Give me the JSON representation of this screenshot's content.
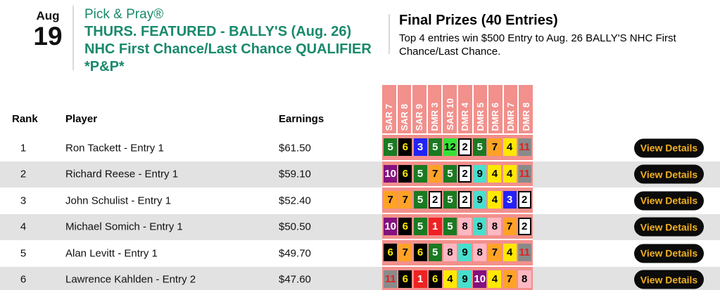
{
  "event_date": {
    "month": "Aug",
    "day": "19"
  },
  "contest": {
    "brand": "Pick & Pray®",
    "title_line1": "THURS. FEATURED - BALLY'S (Aug. 26)",
    "title_line2": "NHC First Chance/Last Chance QUALIFIER",
    "title_line3": "*P&P*"
  },
  "prizes": {
    "title": "Final Prizes (40 Entries)",
    "description": "Top 4 entries win $500 Entry to Aug. 26 BALLY'S NHC First Chance/Last Chance."
  },
  "leaderboard": {
    "columns": {
      "rank": "Rank",
      "player": "Player",
      "earnings": "Earnings"
    },
    "races": [
      "SAR 7",
      "SAR 8",
      "SAR 9",
      "DMR 3",
      "SAR 10",
      "DMR 4",
      "DMR 5",
      "DMR 6",
      "DMR 7",
      "DMR 8"
    ],
    "view_details_label": "View Details",
    "rows": [
      {
        "rank": "1",
        "player": "Ron Tackett - Entry 1",
        "earnings": "$61.50",
        "picks": [
          5,
          6,
          3,
          5,
          12,
          2,
          5,
          7,
          4,
          11
        ]
      },
      {
        "rank": "2",
        "player": "Richard Reese - Entry 1",
        "earnings": "$59.10",
        "picks": [
          10,
          6,
          5,
          7,
          5,
          2,
          9,
          4,
          4,
          11
        ]
      },
      {
        "rank": "3",
        "player": "John Schulist - Entry 1",
        "earnings": "$52.40",
        "picks": [
          7,
          7,
          5,
          2,
          5,
          2,
          9,
          4,
          3,
          2
        ]
      },
      {
        "rank": "4",
        "player": "Michael Somich - Entry 1",
        "earnings": "$50.50",
        "picks": [
          10,
          6,
          5,
          1,
          5,
          8,
          9,
          8,
          7,
          2
        ]
      },
      {
        "rank": "5",
        "player": "Alan Levitt - Entry 1",
        "earnings": "$49.70",
        "picks": [
          6,
          7,
          6,
          5,
          8,
          9,
          8,
          7,
          4,
          11
        ]
      },
      {
        "rank": "6",
        "player": "Lawrence Kahlden - Entry 2",
        "earnings": "$47.60",
        "picks": [
          11,
          6,
          1,
          6,
          4,
          9,
          10,
          4,
          7,
          8
        ]
      }
    ]
  },
  "colors": {
    "contest_green": "#19896B",
    "race_header_pink": "#F2908C",
    "row_stripe_gray": "#E2E2E2",
    "button_bg": "#0B0B0B",
    "button_text": "#F2B022",
    "saddle_cloth": {
      "1": {
        "bg": "#EE2222",
        "fg": "#FFFFFF"
      },
      "2": {
        "bg": "#FFFFFF",
        "fg": "#000000",
        "border": "#000000"
      },
      "3": {
        "bg": "#2222F5",
        "fg": "#FFFFFF"
      },
      "4": {
        "bg": "#FFE800",
        "fg": "#000000"
      },
      "5": {
        "bg": "#1A7A21",
        "fg": "#FFFFFF"
      },
      "6": {
        "bg": "#000000",
        "fg": "#FFE800"
      },
      "7": {
        "bg": "#FFA225",
        "fg": "#000000"
      },
      "8": {
        "bg": "#FFB7C3",
        "fg": "#000000"
      },
      "9": {
        "bg": "#47DFCD",
        "fg": "#000000"
      },
      "10": {
        "bg": "#83117E",
        "fg": "#FFFFFF"
      },
      "11": {
        "bg": "#8A8A8A",
        "fg": "#E3201F"
      },
      "12": {
        "bg": "#35E135",
        "fg": "#000000"
      }
    }
  }
}
